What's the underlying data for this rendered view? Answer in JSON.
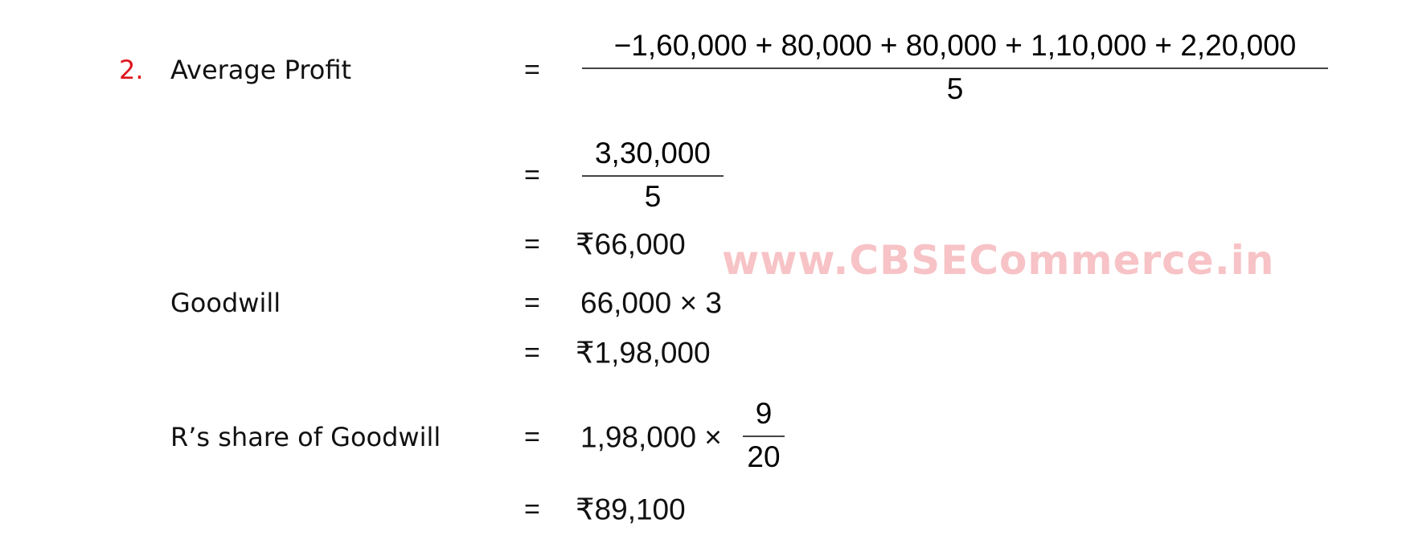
{
  "question_number": "2.",
  "colors": {
    "question_number": "#e0141e",
    "watermark": "#f7c3c6"
  },
  "watermark": "www.CBSECommerce.in",
  "equals": "=",
  "average_profit": {
    "label": "Average Profit",
    "step1_numerator": "−1,60,000 + 80,000 + 80,000 + 1,10,000 + 2,20,000",
    "step1_denominator": "5",
    "step2_numerator": "3,30,000",
    "step2_denominator": "5",
    "result": "₹66,000"
  },
  "goodwill": {
    "label": "Goodwill",
    "expression": "66,000 × 3",
    "result": "₹1,98,000"
  },
  "r_share": {
    "label": "R’s share of Goodwill",
    "expression": "1,98,000 ×",
    "fraction_numerator": "9",
    "fraction_denominator": "20",
    "result": "₹89,100"
  }
}
